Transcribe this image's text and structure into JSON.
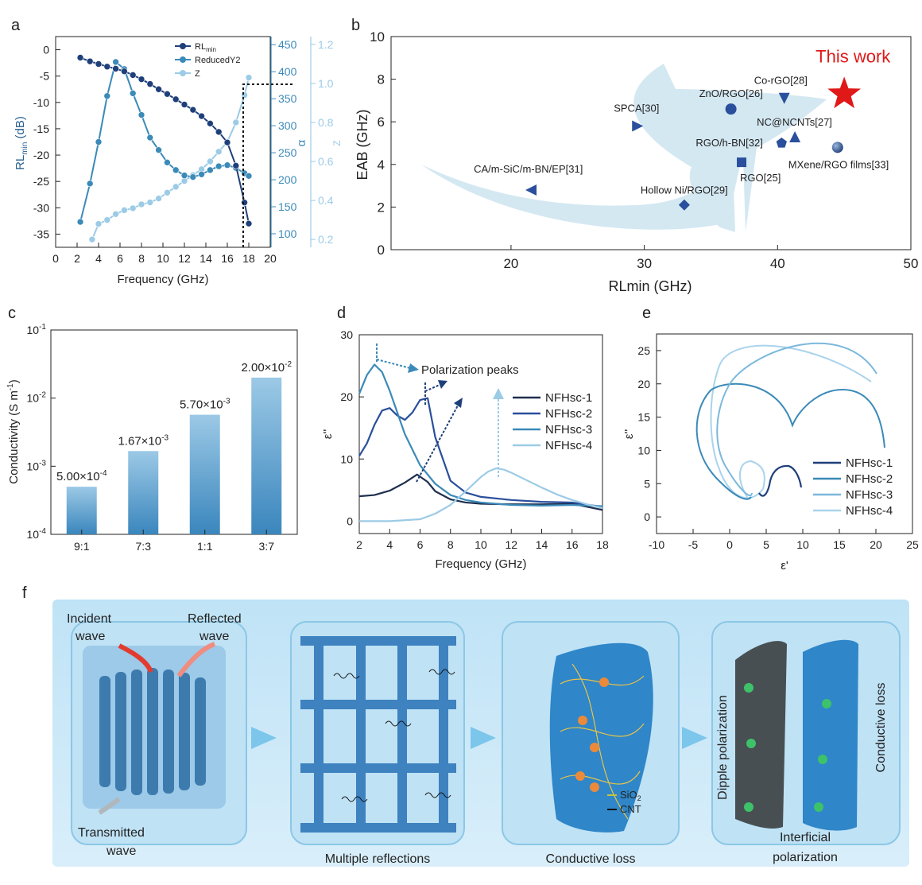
{
  "panels": {
    "a": {
      "letter": "a"
    },
    "b": {
      "letter": "b"
    },
    "c": {
      "letter": "c"
    },
    "d": {
      "letter": "d"
    },
    "e": {
      "letter": "e"
    },
    "f": {
      "letter": "f"
    }
  },
  "chart_data": [
    {
      "type": "line",
      "xlabel": "Frequency (GHz)",
      "ylabel_main": "RL",
      "ylabel_sub": "min",
      "ylabel_unit": " (dB)",
      "alpha_label": "α",
      "z_label": "Z",
      "xlim": [
        0,
        20
      ],
      "ylim": [
        -37.5,
        2.5
      ],
      "alpha_lim": [
        75,
        465
      ],
      "z_lim": [
        0.16,
        1.24
      ],
      "x_ticks": [
        0,
        2,
        4,
        6,
        8,
        10,
        12,
        14,
        16,
        18,
        20
      ],
      "y_ticks": [
        0,
        -5,
        -10,
        -15,
        -20,
        -25,
        -30,
        -35
      ],
      "y_tick_labels": [
        "0",
        "-5",
        "-10",
        "-15",
        "-20",
        "-25",
        "-30",
        "-35"
      ],
      "alpha_ticks": [
        100,
        150,
        200,
        250,
        300,
        350,
        400,
        450
      ],
      "z_ticks": [
        0.2,
        0.4,
        0.6,
        0.8,
        1.0,
        1.2
      ],
      "series": [
        {
          "name": "RLmin",
          "legend_main": "RL",
          "legend_sub": "min",
          "axis": "left",
          "color": "#1f3f7a",
          "x": [
            2.3,
            3.2,
            4.0,
            4.8,
            5.6,
            6.4,
            7.2,
            8.0,
            8.8,
            9.6,
            10.4,
            11.2,
            12.0,
            12.8,
            13.6,
            14.4,
            15.2,
            16.0,
            16.8,
            17.6,
            18.0
          ],
          "y": [
            -1.5,
            -2.2,
            -2.7,
            -3.2,
            -3.6,
            -4.1,
            -4.8,
            -5.6,
            -6.5,
            -7.5,
            -8.4,
            -9.4,
            -10.4,
            -11.4,
            -12.6,
            -14.0,
            -15.6,
            -17.6,
            -22.0,
            -29.0,
            -33.0
          ]
        },
        {
          "name": "ReducedY2",
          "legend_main": "ReducedY2",
          "axis": "alpha",
          "color": "#3b8ab8",
          "x": [
            2.3,
            3.2,
            4.0,
            4.8,
            5.6,
            6.4,
            7.2,
            8.0,
            8.8,
            9.6,
            10.4,
            11.2,
            12.0,
            12.8,
            13.6,
            14.4,
            15.2,
            16.0,
            16.8,
            17.6,
            18.0
          ],
          "y": [
            122,
            193,
            270,
            355,
            418,
            405,
            360,
            320,
            278,
            255,
            232,
            218,
            208,
            205,
            210,
            218,
            225,
            227,
            222,
            212,
            207
          ]
        },
        {
          "name": "Z",
          "legend_main": "Z",
          "axis": "z",
          "color": "#9ccbe6",
          "x": [
            3.4,
            4.0,
            4.8,
            5.6,
            6.4,
            7.2,
            8.0,
            8.8,
            9.6,
            10.4,
            11.2,
            12.0,
            12.8,
            13.6,
            14.4,
            15.2,
            16.0,
            16.8,
            17.6,
            18.0
          ],
          "y": [
            0.2,
            0.28,
            0.3,
            0.33,
            0.35,
            0.36,
            0.38,
            0.39,
            0.41,
            0.44,
            0.47,
            0.5,
            0.53,
            0.56,
            0.6,
            0.65,
            0.7,
            0.8,
            0.94,
            1.03
          ]
        }
      ]
    },
    {
      "type": "scatter",
      "xlabel": "RLmin (GHz)",
      "ylabel": "EAB (GHz)",
      "xlim": [
        11,
        50
      ],
      "ylim": [
        0,
        10
      ],
      "x_ticks": [
        20,
        30,
        40,
        50
      ],
      "y_ticks": [
        0,
        2,
        4,
        6,
        8,
        10
      ],
      "points": [
        {
          "label": "CA/m-SiC/m-BN/EP[31]",
          "x": 21.5,
          "y": 2.8,
          "marker": "tri-left",
          "color": "#2a4f9c"
        },
        {
          "label": "SPCA[30]",
          "x": 29.5,
          "y": 5.8,
          "marker": "tri-right",
          "color": "#2a4f9c"
        },
        {
          "label": "Hollow Ni/RGO[29]",
          "x": 33.0,
          "y": 2.1,
          "marker": "diamond",
          "color": "#2a4f9c"
        },
        {
          "label": "RGO[25]",
          "x": 37.3,
          "y": 4.1,
          "marker": "square",
          "color": "#2a4f9c"
        },
        {
          "label": "ZnO/RGO[26]",
          "x": 36.5,
          "y": 6.6,
          "marker": "circle",
          "color": "#2a4f9c"
        },
        {
          "label": "RGO/h-BN[32]",
          "x": 40.3,
          "y": 5.0,
          "marker": "pentagon",
          "color": "#2a4f9c"
        },
        {
          "label": "NC@NCNTs[27]",
          "x": 41.3,
          "y": 5.3,
          "marker": "tri-up",
          "color": "#2a4f9c"
        },
        {
          "label": "Co-rGO[28]",
          "x": 40.5,
          "y": 7.1,
          "marker": "tri-down",
          "color": "#2a4f9c"
        },
        {
          "label": "MXene/RGO films[33]",
          "x": 44.5,
          "y": 4.8,
          "marker": "sphere",
          "color": "#1f3f7a"
        },
        {
          "label": "This work",
          "x": 45.0,
          "y": 7.3,
          "marker": "star",
          "color": "#e01818"
        }
      ]
    },
    {
      "type": "bar",
      "ylabel_main": "Conductivity (S m",
      "ylabel_sup": "-1",
      "ylabel_close": ")",
      "yscale": "log",
      "ylim": [
        0.0001,
        0.1
      ],
      "y_tick_labels": [
        {
          "value": 0.1,
          "base": "10",
          "exp": "-1"
        },
        {
          "value": 0.01,
          "base": "10",
          "exp": "-2"
        },
        {
          "value": 0.001,
          "base": "10",
          "exp": "-3"
        },
        {
          "value": 0.0001,
          "base": "10",
          "exp": "-4"
        }
      ],
      "categories": [
        "9:1",
        "7:3",
        "1:1",
        "3:7"
      ],
      "values": [
        0.0005,
        0.00167,
        0.0057,
        0.02
      ],
      "value_labels": [
        {
          "mant": "5.00×10",
          "exp": "-4"
        },
        {
          "mant": "1.67×10",
          "exp": "-3"
        },
        {
          "mant": "5.70×10",
          "exp": "-3"
        },
        {
          "mant": "2.00×10",
          "exp": "-2"
        }
      ],
      "color": "#5aa2d0"
    },
    {
      "type": "line",
      "xlabel": "Frequency (GHz)",
      "ylabel": "ε''",
      "annotation": "Polarization peaks",
      "xlim": [
        2,
        18
      ],
      "ylim": [
        -2,
        30
      ],
      "x_ticks": [
        2,
        4,
        6,
        8,
        10,
        12,
        14,
        16,
        18
      ],
      "y_ticks": [
        0,
        10,
        20,
        30
      ],
      "series": [
        {
          "name": "NFHsc-1",
          "color": "#1f2f4f",
          "x": [
            2,
            3,
            4,
            5,
            5.8,
            6.5,
            7,
            8,
            9,
            10,
            12,
            14,
            16,
            18
          ],
          "y": [
            4.0,
            4.2,
            4.9,
            6.2,
            7.5,
            6.3,
            4.8,
            3.5,
            3.0,
            2.8,
            2.7,
            2.7,
            2.8,
            1.8
          ]
        },
        {
          "name": "NFHsc-2",
          "color": "#2a4f9c",
          "x": [
            2,
            2.5,
            3,
            3.5,
            4,
            4.5,
            5,
            5.5,
            6,
            6.5,
            7,
            8,
            9,
            10,
            12,
            14,
            16,
            18
          ],
          "y": [
            10.5,
            12.5,
            15.5,
            17.8,
            18.2,
            17.0,
            16.3,
            17.5,
            19.5,
            19.8,
            13.5,
            6.5,
            4.6,
            3.9,
            3.4,
            3.1,
            3.0,
            2.3
          ]
        },
        {
          "name": "NFHsc-3",
          "color": "#3b8ab8",
          "x": [
            2,
            2.5,
            3,
            3.5,
            4,
            4.5,
            5,
            6,
            7,
            8,
            9,
            10,
            12,
            14,
            16,
            18
          ],
          "y": [
            20.5,
            23.5,
            25.2,
            24.0,
            21.0,
            17.5,
            14.0,
            9.0,
            6.0,
            4.2,
            3.4,
            3.0,
            2.6,
            2.5,
            2.6,
            2.4
          ]
        },
        {
          "name": "NFHsc-4",
          "color": "#9ccbe6",
          "x": [
            2,
            4,
            6,
            7,
            8,
            9,
            10,
            10.5,
            11,
            11.5,
            12,
            13,
            14,
            15,
            16,
            17,
            18
          ],
          "y": [
            0.0,
            0.0,
            0.3,
            1.2,
            2.6,
            4.8,
            7.1,
            8.0,
            8.5,
            8.3,
            7.8,
            6.6,
            5.4,
            4.3,
            3.4,
            2.7,
            2.1
          ]
        }
      ]
    },
    {
      "type": "line",
      "xlabel": "ε'",
      "ylabel": "ε''",
      "xlim": [
        -10,
        25
      ],
      "ylim": [
        -2.5,
        27.5
      ],
      "x_ticks": [
        -10,
        -5,
        0,
        5,
        10,
        15,
        20,
        25
      ],
      "y_ticks": [
        0,
        5,
        10,
        15,
        20,
        25
      ],
      "series": [
        {
          "name": "NFHsc-1",
          "color": "#1f3f7a"
        },
        {
          "name": "NFHsc-2",
          "color": "#3b8ab8"
        },
        {
          "name": "NFHsc-3",
          "color": "#7bb8dc"
        },
        {
          "name": "NFHsc-4",
          "color": "#aad3ec"
        }
      ]
    }
  ],
  "panel_f": {
    "box1": {
      "incident_1": "Incident",
      "incident_2": "wave",
      "reflected_1": "Reflected",
      "reflected_2": "wave",
      "transmitted_1": "Transmitted",
      "transmitted_2": "wave"
    },
    "box3": {
      "sio2_main": "SiO",
      "sio2_sub": "2",
      "cnt": "CNT"
    },
    "box4": {
      "dipole": "Dipple polarization",
      "conductive": "Conductive loss",
      "interficial_1": "Interficial",
      "interficial_2": "polarization"
    },
    "captions": [
      "Multiple reflections",
      "Conductive loss"
    ]
  }
}
